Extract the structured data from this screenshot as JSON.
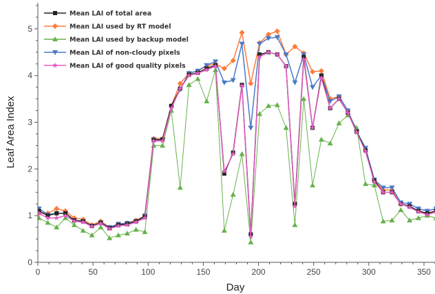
{
  "chart_data": {
    "type": "line",
    "xlabel": "Day",
    "ylabel": "Leaf Area Index",
    "xlim": [
      0,
      360
    ],
    "ylim": [
      0,
      5.5
    ],
    "xticks": [
      0,
      50,
      100,
      150,
      200,
      250,
      300,
      350
    ],
    "yticks": [
      0,
      1,
      2,
      3,
      4,
      5
    ],
    "grid": false,
    "legend": "top-left",
    "x": [
      1,
      9,
      17,
      25,
      33,
      41,
      49,
      57,
      65,
      73,
      81,
      89,
      97,
      105,
      113,
      121,
      129,
      137,
      145,
      153,
      161,
      169,
      177,
      185,
      193,
      201,
      209,
      217,
      225,
      233,
      241,
      249,
      257,
      265,
      273,
      281,
      289,
      297,
      305,
      313,
      321,
      329,
      337,
      345,
      353,
      361
    ],
    "series": [
      {
        "name": "Mean LAI of total area",
        "color": "#222222",
        "marker": "square",
        "values": [
          1.1,
          1.0,
          1.05,
          1.05,
          0.9,
          0.88,
          0.78,
          0.85,
          0.73,
          0.8,
          0.82,
          0.88,
          0.98,
          2.62,
          2.63,
          3.35,
          3.72,
          4.02,
          4.06,
          4.15,
          4.22,
          1.9,
          2.35,
          3.8,
          0.6,
          4.45,
          4.5,
          4.45,
          4.2,
          1.25,
          4.4,
          2.88,
          4.0,
          3.3,
          3.5,
          3.2,
          2.8,
          2.4,
          1.75,
          1.5,
          1.5,
          1.25,
          1.2,
          1.1,
          1.05,
          1.1
        ]
      },
      {
        "name": "Mean LAI used by RT model",
        "color": "#ff7b3a",
        "marker": "diamond",
        "values": [
          1.05,
          1.05,
          1.15,
          1.1,
          0.95,
          0.92,
          0.8,
          0.88,
          0.75,
          0.82,
          0.84,
          0.9,
          1.0,
          2.65,
          2.65,
          3.35,
          3.83,
          4.05,
          4.1,
          4.2,
          4.25,
          4.15,
          4.32,
          4.92,
          3.83,
          4.7,
          4.88,
          4.95,
          4.45,
          4.62,
          4.48,
          4.08,
          4.1,
          3.5,
          3.55,
          3.25,
          2.8,
          2.4,
          1.75,
          1.55,
          1.55,
          1.25,
          1.2,
          1.1,
          1.05,
          1.1
        ]
      },
      {
        "name": "Mean LAI used by backup model",
        "color": "#66b24a",
        "marker": "triangle-up",
        "values": [
          0.95,
          0.85,
          0.75,
          0.95,
          0.8,
          0.68,
          0.58,
          0.75,
          0.52,
          0.58,
          0.62,
          0.7,
          0.65,
          2.5,
          2.5,
          3.25,
          1.6,
          3.8,
          3.93,
          3.45,
          4.12,
          0.68,
          1.45,
          2.32,
          0.43,
          3.18,
          3.35,
          3.37,
          2.88,
          0.8,
          3.5,
          1.65,
          2.63,
          2.55,
          2.98,
          3.15,
          2.88,
          1.68,
          1.65,
          0.88,
          0.9,
          1.12,
          0.9,
          0.95,
          1.0,
          0.95
        ]
      },
      {
        "name": "Mean LAI of non-cloudy pixels",
        "color": "#4a78c8",
        "marker": "triangle-down",
        "values": [
          1.15,
          1.02,
          1.05,
          1.05,
          0.9,
          0.88,
          0.78,
          0.85,
          0.75,
          0.82,
          0.84,
          0.88,
          1.0,
          2.63,
          2.63,
          3.33,
          3.7,
          4.05,
          4.1,
          4.22,
          4.3,
          3.85,
          3.9,
          4.68,
          2.88,
          4.68,
          4.8,
          4.82,
          4.45,
          3.85,
          4.45,
          3.75,
          4.0,
          3.45,
          3.55,
          3.25,
          2.8,
          2.45,
          1.77,
          1.6,
          1.6,
          1.28,
          1.25,
          1.15,
          1.1,
          1.15
        ]
      },
      {
        "name": "Mean LAI of good quality pixels",
        "color": "#e35cc0",
        "marker": "star",
        "values": [
          1.05,
          0.95,
          0.95,
          1.0,
          0.88,
          0.86,
          0.77,
          0.83,
          0.72,
          0.78,
          0.8,
          0.86,
          0.95,
          2.6,
          2.6,
          3.3,
          3.72,
          4.0,
          4.05,
          4.12,
          4.2,
          1.95,
          2.32,
          3.78,
          0.55,
          4.4,
          4.5,
          4.45,
          4.2,
          1.2,
          4.35,
          2.88,
          3.95,
          3.3,
          3.5,
          3.2,
          2.78,
          2.38,
          1.72,
          1.5,
          1.5,
          1.25,
          1.18,
          1.08,
          1.02,
          1.08
        ]
      }
    ]
  }
}
